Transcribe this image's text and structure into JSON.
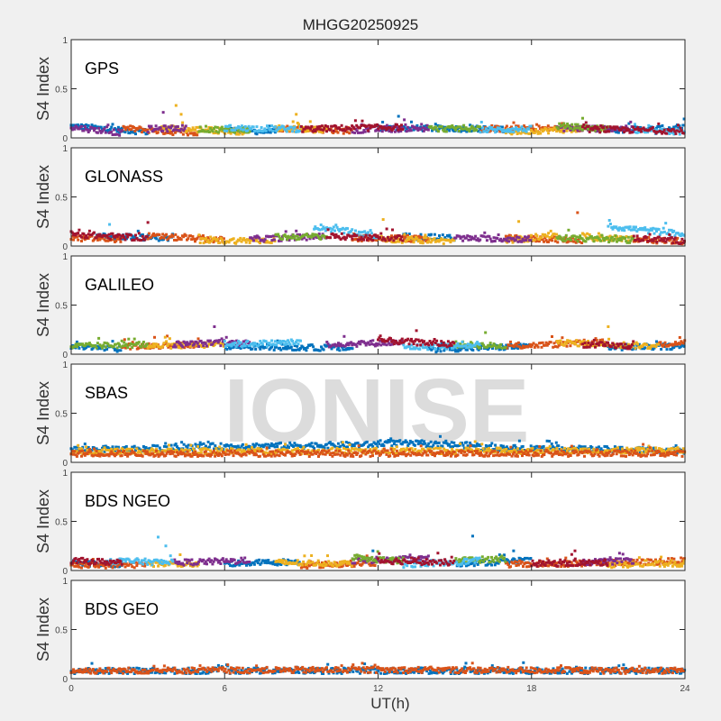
{
  "chart_data": {
    "type": "scatter",
    "title": "MHGG20250925",
    "xlabel": "UT(h)",
    "ylabel": "S4 Index",
    "xlim": [
      0,
      24
    ],
    "ylim": [
      0,
      1
    ],
    "xticks": [
      0,
      6,
      12,
      18,
      24
    ],
    "yticks": [
      0,
      0.5,
      1
    ],
    "ytick_labels": [
      "0",
      "0.5",
      "1"
    ],
    "watermark": "IONISE",
    "panels": [
      {
        "label": "GPS",
        "series": [
          {
            "color": "#0072BD",
            "segments": [
              [
                0,
                3,
                0.12,
                0.06
              ],
              [
                6,
                8,
                0.08,
                0.06
              ],
              [
                12,
                17,
                0.1,
                0.09
              ],
              [
                21,
                24,
                0.08,
                0.1
              ]
            ]
          },
          {
            "color": "#D95319",
            "segments": [
              [
                2,
                5,
                0.1,
                0.04
              ],
              [
                8,
                11,
                0.1,
                0.07
              ],
              [
                16,
                20,
                0.09,
                0.1
              ]
            ]
          },
          {
            "color": "#EDB120",
            "segments": [
              [
                3.5,
                7,
                0.1,
                0.06
              ],
              [
                8,
                10,
                0.1,
                0.08
              ],
              [
                17,
                21,
                0.06,
                0.1
              ]
            ]
          },
          {
            "color": "#7E2F8E",
            "segments": [
              [
                0,
                2,
                0.11,
                0.05
              ],
              [
                3,
                4.5,
                0.09,
                0.1
              ],
              [
                11,
                14,
                0.08,
                0.1
              ],
              [
                19,
                22,
                0.1,
                0.09
              ]
            ]
          },
          {
            "color": "#77AC30",
            "segments": [
              [
                5,
                7,
                0.09,
                0.08
              ],
              [
                14,
                16,
                0.09,
                0.1
              ],
              [
                19,
                21,
                0.12,
                0.09
              ]
            ]
          },
          {
            "color": "#4DBEEE",
            "segments": [
              [
                6,
                9,
                0.1,
                0.09
              ],
              [
                16,
                18,
                0.08,
                0.09
              ],
              [
                22,
                24,
                0.07,
                0.06
              ]
            ]
          },
          {
            "color": "#A2142F",
            "segments": [
              [
                9,
                13,
                0.09,
                0.11
              ],
              [
                20,
                24,
                0.09,
                0.07
              ]
            ]
          }
        ],
        "spikes": [
          [
            4.1,
            0.33,
            "#EDB120"
          ],
          [
            3.6,
            0.26,
            "#7E2F8E"
          ],
          [
            4.3,
            0.24,
            "#EDB120"
          ],
          [
            8.8,
            0.24,
            "#EDB120"
          ],
          [
            12.8,
            0.22,
            "#0072BD"
          ],
          [
            20,
            0.2,
            "#77AC30"
          ]
        ]
      },
      {
        "label": "GLONASS",
        "series": [
          {
            "color": "#0072BD",
            "segments": [
              [
                1,
                4,
                0.1,
                0.08
              ],
              [
                13,
                15,
                0.1,
                0.08
              ]
            ]
          },
          {
            "color": "#D95319",
            "segments": [
              [
                0,
                2,
                0.08,
                0.07
              ],
              [
                3,
                6,
                0.1,
                0.06
              ],
              [
                11,
                14,
                0.08,
                0.07
              ],
              [
                17,
                20,
                0.08,
                0.06
              ],
              [
                22,
                24,
                0.06,
                0.05
              ]
            ]
          },
          {
            "color": "#EDB120",
            "segments": [
              [
                5,
                8,
                0.05,
                0.06
              ],
              [
                12,
                15,
                0.07,
                0.05
              ],
              [
                17,
                19,
                0.06,
                0.1
              ],
              [
                20,
                22,
                0.09,
                0.07
              ]
            ]
          },
          {
            "color": "#7E2F8E",
            "segments": [
              [
                7,
                10,
                0.07,
                0.1
              ],
              [
                15,
                18,
                0.08,
                0.07
              ]
            ]
          },
          {
            "color": "#77AC30",
            "segments": [
              [
                8,
                10,
                0.09,
                0.1
              ],
              [
                19,
                22,
                0.08,
                0.06
              ]
            ]
          },
          {
            "color": "#4DBEEE",
            "segments": [
              [
                9.5,
                12,
                0.2,
                0.1
              ],
              [
                21,
                24,
                0.2,
                0.12
              ]
            ]
          },
          {
            "color": "#A2142F",
            "segments": [
              [
                0,
                3,
                0.12,
                0.08
              ],
              [
                10,
                13,
                0.1,
                0.08
              ],
              [
                22,
                24,
                0.08,
                0.05
              ]
            ]
          }
        ],
        "spikes": [
          [
            1.5,
            0.22,
            "#4DBEEE"
          ],
          [
            3,
            0.24,
            "#A2142F"
          ],
          [
            12.2,
            0.27,
            "#EDB120"
          ],
          [
            17.5,
            0.25,
            "#EDB120"
          ],
          [
            19.8,
            0.34,
            "#D95319"
          ]
        ]
      },
      {
        "label": "GALILEO",
        "series": [
          {
            "color": "#0072BD",
            "segments": [
              [
                0,
                2,
                0.08,
                0.05
              ],
              [
                6,
                11,
                0.08,
                0.06
              ],
              [
                14,
                18,
                0.05,
                0.08
              ],
              [
                21,
                24,
                0.07,
                0.08
              ]
            ]
          },
          {
            "color": "#D95319",
            "segments": [
              [
                2,
                5,
                0.08,
                0.1
              ],
              [
                17,
                21,
                0.08,
                0.12
              ],
              [
                23,
                24,
                0.1,
                0.12
              ]
            ]
          },
          {
            "color": "#EDB120",
            "segments": [
              [
                3,
                6,
                0.08,
                0.1
              ],
              [
                19,
                23,
                0.12,
                0.08
              ]
            ]
          },
          {
            "color": "#7E2F8E",
            "segments": [
              [
                4,
                7,
                0.1,
                0.12
              ],
              [
                10,
                13,
                0.1,
                0.12
              ]
            ]
          },
          {
            "color": "#77AC30",
            "segments": [
              [
                0,
                3,
                0.08,
                0.1
              ],
              [
                15,
                17,
                0.1,
                0.08
              ]
            ]
          },
          {
            "color": "#4DBEEE",
            "segments": [
              [
                6,
                9,
                0.1,
                0.12
              ],
              [
                13,
                16,
                0.07,
                0.09
              ]
            ]
          },
          {
            "color": "#A2142F",
            "segments": [
              [
                12,
                15,
                0.14,
                0.1
              ],
              [
                20,
                22,
                0.1,
                0.08
              ]
            ]
          }
        ],
        "spikes": [
          [
            5.6,
            0.28,
            "#7E2F8E"
          ],
          [
            13.5,
            0.24,
            "#A2142F"
          ],
          [
            16.2,
            0.22,
            "#77AC30"
          ],
          [
            21,
            0.28,
            "#EDB120"
          ],
          [
            23.8,
            0.17,
            "#D95319"
          ]
        ]
      },
      {
        "label": "SBAS",
        "series": [
          {
            "color": "#0072BD",
            "segments": [
              [
                0,
                5,
                0.13,
                0.15
              ],
              [
                5,
                12,
                0.16,
                0.18
              ],
              [
                12,
                16,
                0.2,
                0.17
              ],
              [
                16,
                24,
                0.15,
                0.12
              ]
            ]
          },
          {
            "color": "#EDB120",
            "segments": [
              [
                0,
                24,
                0.11,
                0.12
              ]
            ]
          },
          {
            "color": "#D95319",
            "segments": [
              [
                0,
                24,
                0.09,
                0.09
              ]
            ]
          }
        ],
        "spikes": [
          [
            12.5,
            0.24,
            "#0072BD"
          ]
        ]
      },
      {
        "label": "BDS NGEO",
        "series": [
          {
            "color": "#0072BD",
            "segments": [
              [
                0,
                2,
                0.08,
                0.06
              ],
              [
                6,
                9,
                0.07,
                0.09
              ],
              [
                15,
                18,
                0.07,
                0.1
              ]
            ]
          },
          {
            "color": "#D95319",
            "segments": [
              [
                0,
                3,
                0.05,
                0.06
              ],
              [
                9,
                12,
                0.05,
                0.08
              ],
              [
                17,
                22,
                0.06,
                0.08
              ],
              [
                22,
                24,
                0.08,
                0.1
              ]
            ]
          },
          {
            "color": "#EDB120",
            "segments": [
              [
                3,
                5,
                0.07,
                0.06
              ],
              [
                8,
                11,
                0.08,
                0.07
              ],
              [
                21,
                24,
                0.06,
                0.07
              ]
            ]
          },
          {
            "color": "#7E2F8E",
            "segments": [
              [
                4,
                7,
                0.08,
                0.1
              ],
              [
                11,
                14,
                0.1,
                0.12
              ],
              [
                20,
                22,
                0.08,
                0.1
              ]
            ]
          },
          {
            "color": "#77AC30",
            "segments": [
              [
                11,
                13,
                0.12,
                0.1
              ],
              [
                15,
                17,
                0.1,
                0.12
              ]
            ]
          },
          {
            "color": "#4DBEEE",
            "segments": [
              [
                1.5,
                4,
                0.1,
                0.08
              ],
              [
                13,
                16,
                0.06,
                0.1
              ]
            ]
          },
          {
            "color": "#A2142F",
            "segments": [
              [
                0,
                2,
                0.1,
                0.08
              ],
              [
                12,
                15,
                0.1,
                0.08
              ],
              [
                18,
                21,
                0.07,
                0.08
              ]
            ]
          }
        ],
        "spikes": [
          [
            3.4,
            0.34,
            "#4DBEEE"
          ],
          [
            3.7,
            0.25,
            "#4DBEEE"
          ],
          [
            11.8,
            0.2,
            "#0072BD"
          ],
          [
            15.7,
            0.35,
            "#0072BD"
          ],
          [
            17.3,
            0.2,
            "#0072BD"
          ],
          [
            19.7,
            0.2,
            "#A2142F"
          ]
        ]
      },
      {
        "label": "BDS GEO",
        "series": [
          {
            "color": "#0072BD",
            "segments": [
              [
                0,
                24,
                0.08,
                0.08
              ]
            ]
          },
          {
            "color": "#D95319",
            "segments": [
              [
                0,
                12,
                0.08,
                0.09
              ],
              [
                12,
                24,
                0.09,
                0.08
              ]
            ]
          }
        ],
        "spikes": []
      }
    ]
  }
}
